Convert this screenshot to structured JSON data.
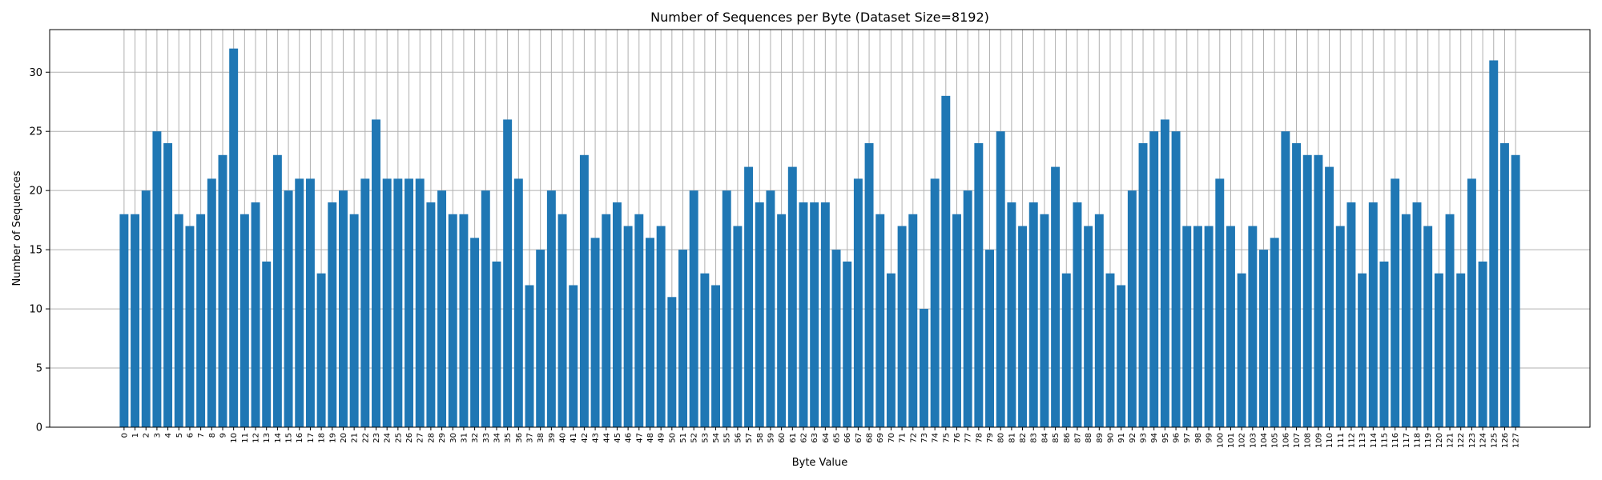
{
  "chart_data": {
    "type": "bar",
    "title": "Number of Sequences per Byte (Dataset Size=8192)",
    "xlabel": "Byte Value",
    "ylabel": "Number of Sequences",
    "ylim": [
      0,
      33.6
    ],
    "yticks": [
      0,
      5,
      10,
      15,
      20,
      25,
      30
    ],
    "grid": true,
    "bar_color": "#1f77b4",
    "grid_color": "#b0b0b0",
    "categories": [
      "0",
      "1",
      "2",
      "3",
      "4",
      "5",
      "6",
      "7",
      "8",
      "9",
      "10",
      "11",
      "12",
      "13",
      "14",
      "15",
      "16",
      "17",
      "18",
      "19",
      "20",
      "21",
      "22",
      "23",
      "24",
      "25",
      "26",
      "27",
      "28",
      "29",
      "30",
      "31",
      "32",
      "33",
      "34",
      "35",
      "36",
      "37",
      "38",
      "39",
      "40",
      "41",
      "42",
      "43",
      "44",
      "45",
      "46",
      "47",
      "48",
      "49",
      "50",
      "51",
      "52",
      "53",
      "54",
      "55",
      "56",
      "57",
      "58",
      "59",
      "60",
      "61",
      "62",
      "63",
      "64",
      "65",
      "66",
      "67",
      "68",
      "69",
      "70",
      "71",
      "72",
      "73",
      "74",
      "75",
      "76",
      "77",
      "78",
      "79",
      "80",
      "81",
      "82",
      "83",
      "84",
      "85",
      "86",
      "87",
      "88",
      "89",
      "90",
      "91",
      "92",
      "93",
      "94",
      "95",
      "96",
      "97",
      "98",
      "99",
      "100",
      "101",
      "102",
      "103",
      "104",
      "105",
      "106",
      "107",
      "108",
      "109",
      "110",
      "111",
      "112",
      "113",
      "114",
      "115",
      "116",
      "117",
      "118",
      "119",
      "120",
      "121",
      "122",
      "123",
      "124",
      "125",
      "126",
      "127"
    ],
    "values": [
      18,
      18,
      20,
      25,
      24,
      18,
      17,
      18,
      21,
      23,
      32,
      18,
      19,
      14,
      23,
      20,
      21,
      21,
      13,
      19,
      20,
      18,
      21,
      26,
      21,
      21,
      21,
      21,
      19,
      20,
      18,
      18,
      16,
      20,
      14,
      26,
      21,
      12,
      15,
      20,
      18,
      12,
      23,
      16,
      18,
      19,
      17,
      18,
      16,
      17,
      11,
      15,
      20,
      13,
      12,
      20,
      17,
      22,
      19,
      20,
      18,
      22,
      19,
      19,
      19,
      15,
      14,
      21,
      24,
      18,
      13,
      17,
      18,
      10,
      21,
      28,
      18,
      20,
      24,
      15,
      25,
      19,
      17,
      19,
      18,
      22,
      13,
      19,
      17,
      18,
      13,
      12,
      20,
      24,
      25,
      26,
      25,
      17,
      17,
      17,
      21,
      17,
      13,
      17,
      15,
      16,
      25,
      24,
      23,
      23,
      22,
      17,
      19,
      13,
      19,
      14,
      21,
      18,
      19,
      17,
      13,
      18,
      13,
      21,
      14,
      31,
      24,
      23
    ]
  }
}
